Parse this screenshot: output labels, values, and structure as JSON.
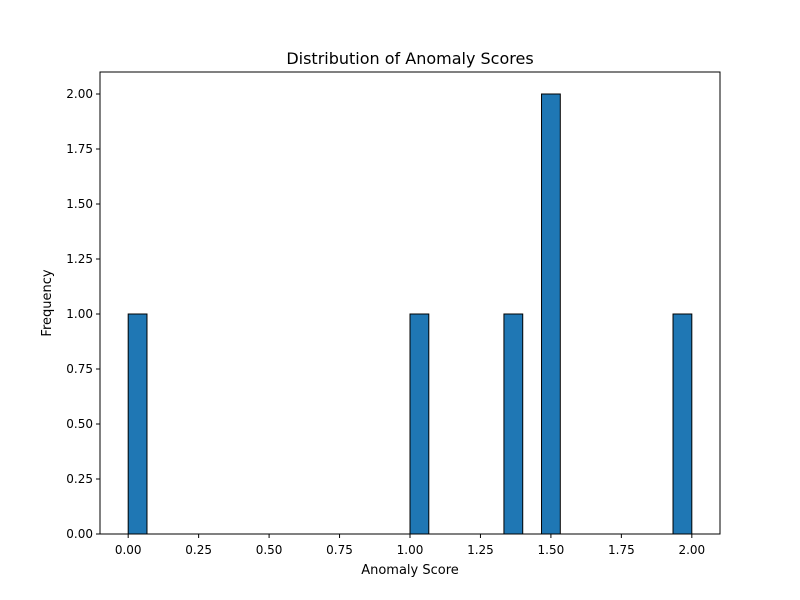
{
  "chart_data": {
    "type": "bar",
    "title": "Distribution of Anomaly Scores",
    "xlabel": "Anomaly Score",
    "ylabel": "Frequency",
    "xlim": [
      -0.1,
      2.1
    ],
    "ylim": [
      0,
      2.1
    ],
    "xticks": [
      "0.00",
      "0.25",
      "0.50",
      "0.75",
      "1.00",
      "1.25",
      "1.50",
      "1.75",
      "2.00"
    ],
    "yticks": [
      "0.00",
      "0.25",
      "0.50",
      "0.75",
      "1.00",
      "1.25",
      "1.50",
      "1.75",
      "2.00"
    ],
    "bin_width": 0.0667,
    "bars": [
      {
        "x_start": 0.0,
        "x_end": 0.0667,
        "value": 1
      },
      {
        "x_start": 1.0,
        "x_end": 1.0667,
        "value": 1
      },
      {
        "x_start": 1.3333,
        "x_end": 1.4,
        "value": 1
      },
      {
        "x_start": 1.4667,
        "x_end": 1.5333,
        "value": 2
      },
      {
        "x_start": 1.9333,
        "x_end": 2.0,
        "value": 1
      }
    ],
    "bar_color": "#1f77b4",
    "edge_color": "#000000",
    "grid": false,
    "legend": "none"
  }
}
